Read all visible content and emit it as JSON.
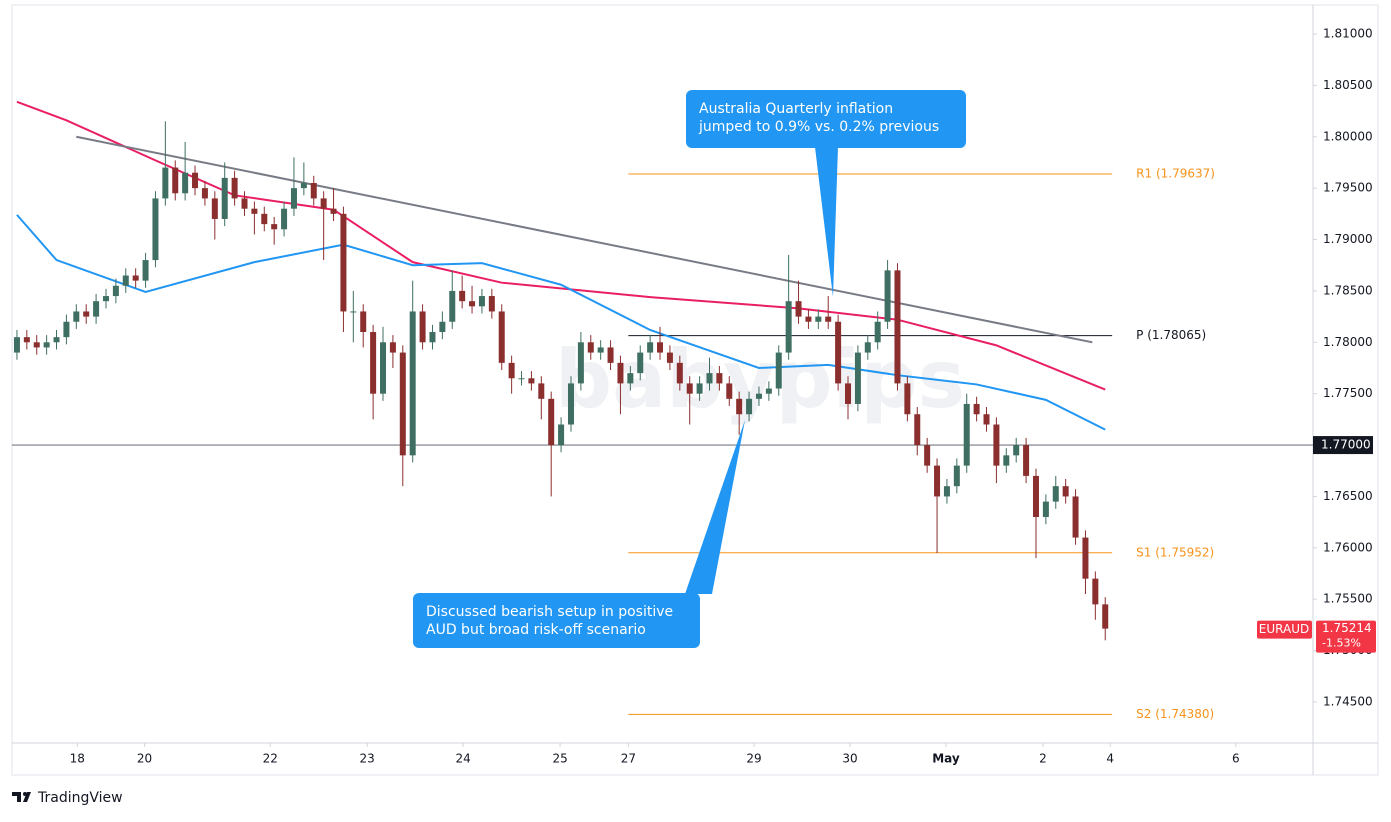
{
  "chart_data": {
    "type": "candlestick",
    "symbol": "EURAUD",
    "up_color": "#3f6f62",
    "down_color": "#8b2e2e",
    "xlim": [
      -0.5,
      131
    ],
    "ylim": [
      1.74101,
      1.81282
    ],
    "xticks": [
      {
        "value": 6.1,
        "label": "18"
      },
      {
        "value": 12.9,
        "label": "20"
      },
      {
        "value": 25.6,
        "label": "22"
      },
      {
        "value": 35.4,
        "label": "23"
      },
      {
        "value": 45.1,
        "label": "24"
      },
      {
        "value": 54.9,
        "label": "25"
      },
      {
        "value": 61.8,
        "label": "27"
      },
      {
        "value": 74.5,
        "label": "29"
      },
      {
        "value": 84.2,
        "label": "30"
      },
      {
        "value": 93.9,
        "label": "May"
      },
      {
        "value": 103.7,
        "label": "2"
      },
      {
        "value": 110.5,
        "label": "4"
      },
      {
        "value": 123.2,
        "label": "6"
      }
    ],
    "yticks": [
      {
        "value": 1.81,
        "label": "1.81000"
      },
      {
        "value": 1.805,
        "label": "1.80500"
      },
      {
        "value": 1.8,
        "label": "1.80000"
      },
      {
        "value": 1.795,
        "label": "1.79500"
      },
      {
        "value": 1.79,
        "label": "1.79000"
      },
      {
        "value": 1.785,
        "label": "1.78500"
      },
      {
        "value": 1.78,
        "label": "1.78000"
      },
      {
        "value": 1.775,
        "label": "1.77500"
      },
      {
        "value": 1.77,
        "label": "1.77000"
      },
      {
        "value": 1.765,
        "label": "1.76500"
      },
      {
        "value": 1.76,
        "label": "1.76000"
      },
      {
        "value": 1.755,
        "label": "1.75500"
      },
      {
        "value": 1.75,
        "label": "1.75000"
      },
      {
        "value": 1.745,
        "label": "1.74500"
      }
    ],
    "open": [
      1.779,
      1.7805,
      1.78,
      1.7795,
      1.78,
      1.7805,
      1.782,
      1.783,
      1.7825,
      1.784,
      1.7845,
      1.7855,
      1.7865,
      1.786,
      1.788,
      1.794,
      1.797,
      1.7945,
      1.7965,
      1.795,
      1.794,
      1.792,
      1.796,
      1.794,
      1.793,
      1.7925,
      1.7915,
      1.791,
      1.793,
      1.795,
      1.7955,
      1.794,
      1.793,
      1.7925,
      1.783,
      1.783,
      1.781,
      1.775,
      1.78,
      1.779,
      1.769,
      1.783,
      1.78,
      1.781,
      1.782,
      1.785,
      1.784,
      1.7835,
      1.7845,
      1.783,
      1.778,
      1.7765,
      1.7765,
      1.776,
      1.7745,
      1.77,
      1.772,
      1.776,
      1.78,
      1.779,
      1.7795,
      1.778,
      1.776,
      1.777,
      1.779,
      1.78,
      1.779,
      1.778,
      1.776,
      1.775,
      1.776,
      1.777,
      1.776,
      1.7745,
      1.773,
      1.7745,
      1.775,
      1.7755,
      1.779,
      1.784,
      1.7825,
      1.782,
      1.7825,
      1.782,
      1.776,
      1.774,
      1.779,
      1.78,
      1.782,
      1.787,
      1.776,
      1.773,
      1.77,
      1.768,
      1.765,
      1.766,
      1.768,
      1.774,
      1.773,
      1.772,
      1.768,
      1.769,
      1.77,
      1.767,
      1.763,
      1.7645,
      1.766,
      1.765,
      1.761,
      1.757,
      1.7545
    ],
    "high": [
      1.7812,
      1.7812,
      1.7807,
      1.7807,
      1.7812,
      1.7827,
      1.7837,
      1.7837,
      1.7847,
      1.7852,
      1.7862,
      1.7872,
      1.7872,
      1.7887,
      1.7947,
      1.8015,
      1.7977,
      1.7995,
      1.7972,
      1.7957,
      1.7947,
      1.7975,
      1.7967,
      1.7947,
      1.7937,
      1.7932,
      1.7922,
      1.7937,
      1.798,
      1.7975,
      1.7962,
      1.7947,
      1.795,
      1.7932,
      1.785,
      1.7837,
      1.7817,
      1.7815,
      1.7807,
      1.7797,
      1.786,
      1.7837,
      1.7817,
      1.783,
      1.787,
      1.7865,
      1.7855,
      1.7852,
      1.7852,
      1.7837,
      1.7787,
      1.7772,
      1.7772,
      1.7767,
      1.7752,
      1.7727,
      1.7767,
      1.781,
      1.7807,
      1.7802,
      1.7802,
      1.7787,
      1.7777,
      1.7797,
      1.7807,
      1.7815,
      1.7797,
      1.7787,
      1.7767,
      1.7767,
      1.7785,
      1.7777,
      1.7767,
      1.7752,
      1.7752,
      1.7757,
      1.7762,
      1.7797,
      1.7885,
      1.786,
      1.7832,
      1.7832,
      1.7845,
      1.7827,
      1.7767,
      1.7797,
      1.7807,
      1.783,
      1.788,
      1.7877,
      1.7767,
      1.7737,
      1.7707,
      1.7687,
      1.7667,
      1.7687,
      1.775,
      1.7747,
      1.7737,
      1.7727,
      1.7697,
      1.7707,
      1.7707,
      1.7677,
      1.7652,
      1.767,
      1.7667,
      1.7657,
      1.7617,
      1.7577,
      1.7552
    ],
    "low": [
      1.7783,
      1.7793,
      1.7788,
      1.7788,
      1.7793,
      1.7798,
      1.7813,
      1.7818,
      1.7818,
      1.7833,
      1.7838,
      1.7848,
      1.7853,
      1.7853,
      1.7873,
      1.7933,
      1.7938,
      1.7938,
      1.7943,
      1.7933,
      1.79,
      1.7913,
      1.7933,
      1.7923,
      1.7905,
      1.7908,
      1.7895,
      1.7903,
      1.7923,
      1.7943,
      1.7933,
      1.788,
      1.7918,
      1.781,
      1.78,
      1.7795,
      1.7725,
      1.7743,
      1.7775,
      1.766,
      1.7683,
      1.7793,
      1.7793,
      1.7803,
      1.7813,
      1.7833,
      1.7828,
      1.7828,
      1.7823,
      1.7773,
      1.775,
      1.7758,
      1.7753,
      1.7725,
      1.765,
      1.7693,
      1.7713,
      1.7753,
      1.7783,
      1.7783,
      1.7773,
      1.773,
      1.7753,
      1.7763,
      1.7783,
      1.7783,
      1.7773,
      1.7753,
      1.772,
      1.7743,
      1.7753,
      1.7753,
      1.7738,
      1.771,
      1.7723,
      1.7738,
      1.7743,
      1.7748,
      1.7783,
      1.7818,
      1.7813,
      1.7813,
      1.7813,
      1.7753,
      1.7725,
      1.7733,
      1.7783,
      1.7793,
      1.7813,
      1.7753,
      1.7723,
      1.769,
      1.7673,
      1.7595,
      1.7643,
      1.7653,
      1.7673,
      1.7723,
      1.7713,
      1.7663,
      1.7673,
      1.7683,
      1.7663,
      1.759,
      1.7623,
      1.7638,
      1.7643,
      1.7603,
      1.7555,
      1.753,
      1.751
    ],
    "close": [
      1.7805,
      1.78,
      1.7795,
      1.78,
      1.7805,
      1.782,
      1.783,
      1.7825,
      1.784,
      1.7845,
      1.7855,
      1.7865,
      1.786,
      1.788,
      1.794,
      1.797,
      1.7945,
      1.7965,
      1.795,
      1.794,
      1.792,
      1.796,
      1.794,
      1.793,
      1.7925,
      1.7915,
      1.791,
      1.793,
      1.795,
      1.7955,
      1.794,
      1.793,
      1.7925,
      1.783,
      1.783,
      1.781,
      1.775,
      1.78,
      1.779,
      1.769,
      1.783,
      1.78,
      1.781,
      1.782,
      1.785,
      1.784,
      1.7835,
      1.7845,
      1.783,
      1.778,
      1.7765,
      1.7765,
      1.776,
      1.7745,
      1.77,
      1.772,
      1.776,
      1.78,
      1.779,
      1.7795,
      1.778,
      1.776,
      1.777,
      1.779,
      1.78,
      1.779,
      1.778,
      1.776,
      1.775,
      1.776,
      1.777,
      1.776,
      1.7745,
      1.773,
      1.7745,
      1.775,
      1.7755,
      1.779,
      1.784,
      1.7825,
      1.782,
      1.7825,
      1.782,
      1.776,
      1.774,
      1.779,
      1.78,
      1.782,
      1.787,
      1.776,
      1.773,
      1.77,
      1.768,
      1.765,
      1.766,
      1.768,
      1.774,
      1.773,
      1.772,
      1.768,
      1.769,
      1.77,
      1.767,
      1.763,
      1.7645,
      1.766,
      1.765,
      1.761,
      1.757,
      1.7545,
      1.75214
    ],
    "moving_averages": [
      {
        "color": "#e91e63",
        "x": [
          0,
          5,
          14,
          22,
          32,
          40,
          49,
          64,
          79,
          89,
          99,
          110
        ],
        "values": [
          1.8034,
          1.8016,
          1.7977,
          1.7943,
          1.7929,
          1.7878,
          1.7858,
          1.7844,
          1.7833,
          1.7822,
          1.7797,
          1.7754
        ]
      },
      {
        "color": "#2196f3",
        "x": [
          0,
          4,
          13,
          24,
          33,
          40,
          47,
          55,
          64,
          75,
          82,
          89,
          97,
          104,
          110
        ],
        "values": [
          1.7924,
          1.788,
          1.7849,
          1.7878,
          1.7895,
          1.7875,
          1.7877,
          1.7856,
          1.7812,
          1.7775,
          1.7778,
          1.7768,
          1.7759,
          1.7744,
          1.7715
        ]
      }
    ],
    "trendline": {
      "color": "#787b86",
      "x": [
        6,
        108.7
      ],
      "values": [
        1.8,
        1.78
      ]
    },
    "horizontal_line": {
      "value": 1.77,
      "label": "1.77000",
      "color": "#787b86"
    },
    "levels": [
      {
        "label": "R1 (1.79637)",
        "value": 1.79637,
        "color": "#f7931a",
        "x": [
          61.8,
          110.7
        ]
      },
      {
        "label": "P (1.78065)",
        "value": 1.78065,
        "color": "#131722",
        "x": [
          61.8,
          110.7
        ]
      },
      {
        "label": "S1 (1.75952)",
        "value": 1.75952,
        "color": "#f7931a",
        "x": [
          61.8,
          110.7
        ]
      },
      {
        "label": "S2 (1.74380)",
        "value": 1.7438,
        "color": "#f7931a",
        "x": [
          61.8,
          110.7
        ]
      }
    ],
    "last_price": {
      "value": 1.75214,
      "label": "1.75214"
    },
    "change": {
      "value": -1.53,
      "label": "-1.53%"
    },
    "annotations": [
      {
        "lines": [
          "Australia Quarterly inflation",
          "jumped to 0.9% vs. 0.2% previous"
        ]
      },
      {
        "lines": [
          "Discussed bearish setup in positive",
          "AUD but broad risk-off scenario"
        ]
      }
    ],
    "watermark": "babypips"
  },
  "footer": {
    "brand": "TradingView"
  }
}
